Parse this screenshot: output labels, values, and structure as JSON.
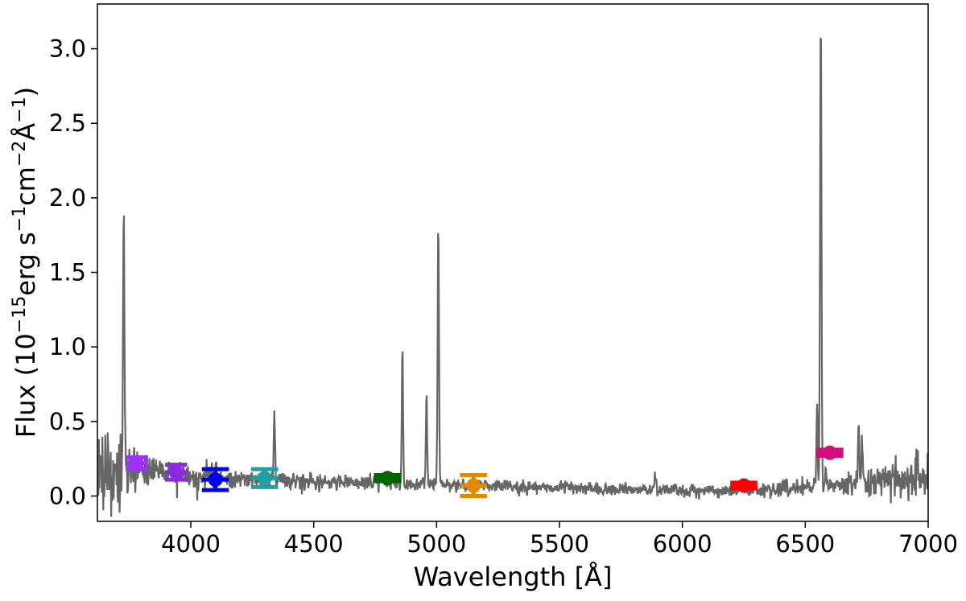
{
  "chart_data": {
    "type": "line",
    "xlabel": "Wavelength [Å]",
    "ylabel": {
      "prefix": "Flux (10",
      "exp1": "−15",
      "mid1": "erg s",
      "exp2": "−1",
      "mid2": "cm",
      "exp3": "−2",
      "mid3": "Å",
      "exp4": "−1",
      "suffix": ")"
    },
    "xlim": [
      3620,
      7000
    ],
    "ylim": [
      -0.17,
      3.3
    ],
    "xticks": [
      4000,
      4500,
      5000,
      5500,
      6000,
      6500,
      7000
    ],
    "xtick_labels": [
      "4000",
      "4500",
      "5000",
      "5500",
      "6000",
      "6500",
      "7000"
    ],
    "yticks": [
      0.0,
      0.5,
      1.0,
      1.5,
      2.0,
      2.5,
      3.0
    ],
    "ytick_labels": [
      "0.0",
      "0.5",
      "1.0",
      "1.5",
      "2.0",
      "2.5",
      "3.0"
    ],
    "grid": false,
    "series": [
      {
        "color": "#666666",
        "seed": 7,
        "continuum": [
          [
            3620,
            0.17
          ],
          [
            3700,
            0.14
          ],
          [
            3800,
            0.19
          ],
          [
            3900,
            0.17
          ],
          [
            4000,
            0.14
          ],
          [
            4100,
            0.12
          ],
          [
            4200,
            0.11
          ],
          [
            4300,
            0.1
          ],
          [
            4400,
            0.1
          ],
          [
            4500,
            0.09
          ],
          [
            4600,
            0.09
          ],
          [
            4700,
            0.09
          ],
          [
            4800,
            0.09
          ],
          [
            4900,
            0.085
          ],
          [
            5000,
            0.08
          ],
          [
            5200,
            0.07
          ],
          [
            5400,
            0.06
          ],
          [
            5600,
            0.05
          ],
          [
            5800,
            0.04
          ],
          [
            6000,
            0.035
          ],
          [
            6200,
            0.04
          ],
          [
            6400,
            0.05
          ],
          [
            6600,
            0.07
          ],
          [
            6800,
            0.09
          ],
          [
            7000,
            0.12
          ]
        ],
        "noise": [
          [
            3620,
            0.13
          ],
          [
            3700,
            0.14
          ],
          [
            3750,
            0.08
          ],
          [
            3850,
            0.05
          ],
          [
            3950,
            0.04
          ],
          [
            4100,
            0.035
          ],
          [
            4400,
            0.03
          ],
          [
            4800,
            0.025
          ],
          [
            5200,
            0.02
          ],
          [
            5600,
            0.02
          ],
          [
            6000,
            0.02
          ],
          [
            6400,
            0.025
          ],
          [
            6700,
            0.04
          ],
          [
            6850,
            0.06
          ],
          [
            7000,
            0.08
          ]
        ],
        "lines": [
          {
            "x": 3727,
            "peak": 1.8,
            "width": 2.5
          },
          {
            "x": 4102,
            "peak": 0.11,
            "width": 2.5
          },
          {
            "x": 4340,
            "peak": 0.51,
            "width": 2.5
          },
          {
            "x": 4861,
            "peak": 0.94,
            "width": 2.5
          },
          {
            "x": 4959,
            "peak": 0.62,
            "width": 2.5
          },
          {
            "x": 5007,
            "peak": 1.74,
            "width": 2.8
          },
          {
            "x": 5890,
            "peak": 0.09,
            "width": 4.0
          },
          {
            "x": 6548,
            "peak": 0.6,
            "width": 2.5
          },
          {
            "x": 6563,
            "peak": 3.11,
            "width": 2.8
          },
          {
            "x": 6584,
            "peak": 0.12,
            "width": 2.5
          },
          {
            "x": 6717,
            "peak": 0.51,
            "width": 2.5
          },
          {
            "x": 6731,
            "peak": 0.33,
            "width": 2.5
          }
        ]
      }
    ],
    "photometry": [
      {
        "x": 3780,
        "y": 0.22,
        "xerr": 45,
        "yerr": 0.04,
        "color": "#9b30ff"
      },
      {
        "x": 3940,
        "y": 0.16,
        "xerr": 45,
        "yerr": 0.05,
        "color": "#8a2be2"
      },
      {
        "x": 4100,
        "y": 0.11,
        "xerr": 55,
        "yerr": 0.07,
        "color": "#0000ee"
      },
      {
        "x": 4300,
        "y": 0.12,
        "xerr": 55,
        "yerr": 0.06,
        "color": "#20a0a0"
      },
      {
        "x": 4800,
        "y": 0.12,
        "xerr": 55,
        "yerr": 0.02,
        "color": "#006400"
      },
      {
        "x": 5150,
        "y": 0.07,
        "xerr": 55,
        "yerr": 0.07,
        "color": "#e08a00"
      },
      {
        "x": 6250,
        "y": 0.07,
        "xerr": 55,
        "yerr": 0.02,
        "color": "#ff0000"
      },
      {
        "x": 6600,
        "y": 0.29,
        "xerr": 55,
        "yerr": 0.02,
        "color": "#d0107a"
      }
    ]
  }
}
